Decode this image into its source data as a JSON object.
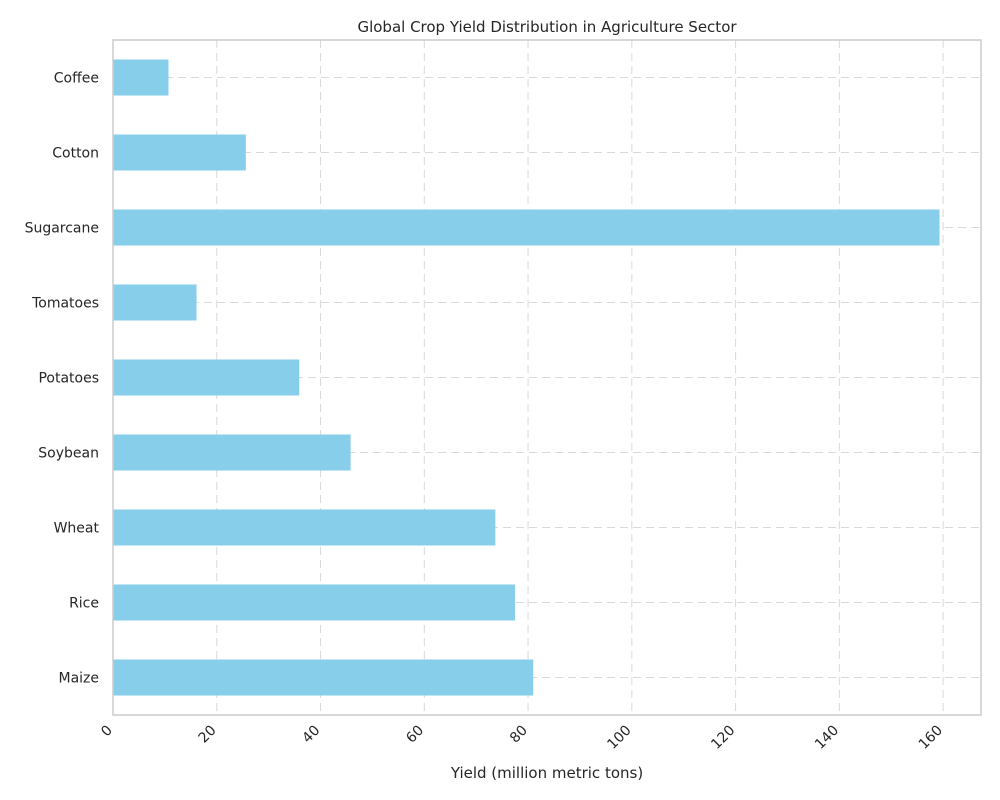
{
  "chart_data": {
    "type": "bar",
    "orientation": "horizontal",
    "title": "Global Crop Yield Distribution in Agriculture Sector",
    "xlabel": "Yield (million metric tons)",
    "ylabel": "",
    "categories": [
      "Maize",
      "Rice",
      "Wheat",
      "Soybean",
      "Potatoes",
      "Tomatoes",
      "Sugarcane",
      "Cotton",
      "Coffee"
    ],
    "values": [
      81,
      77.5,
      73.7,
      45.8,
      35.9,
      16.1,
      159.3,
      25.6,
      10.7
    ],
    "xlim": [
      0,
      167.3
    ],
    "xticks": [
      0,
      20,
      40,
      60,
      80,
      100,
      120,
      140,
      160
    ],
    "grid": true,
    "bar_color": "#87ceeb"
  }
}
